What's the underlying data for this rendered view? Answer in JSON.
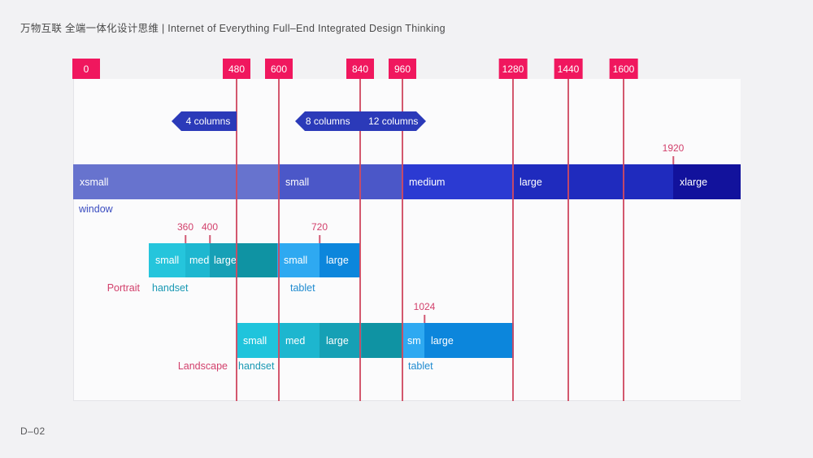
{
  "title": "万物互联 全端一体化设计思维 | Internet of Everything Full–End Integrated Design Thinking",
  "doc_code": "D–02",
  "colors": {
    "breakpoint_tag": "#F0175E",
    "breakpoint_line": "#CF4A62",
    "column_badge": "#2B3AB9",
    "window_xsmall": "#6773CE",
    "window_small": "#4B57C8",
    "window_medium": "#2B3AD2",
    "window_large": "#1F2BBE",
    "window_xlarge": "#12129C",
    "handset_small": "#25C5DC",
    "handset_med": "#1DB7D0",
    "handset_large": "#17A0B6",
    "handset_extension": "#0F93A3",
    "tablet_small": "#2EA9F1",
    "tablet_large": "#0C86DC",
    "pink_text": "#D23F6B",
    "teal_text": "#1898B3",
    "blue_text": "#1F8BD0"
  },
  "breakpoint_tags": [
    "0",
    "480",
    "600",
    "840",
    "960",
    "1280",
    "1440",
    "1600"
  ],
  "max_width_label": "1920",
  "column_badges": {
    "four": "4 columns",
    "eight": "8 columns",
    "twelve": "12 columns"
  },
  "window_bar": {
    "caption": "window",
    "segments": [
      "xsmall",
      "small",
      "medium",
      "large",
      "xlarge"
    ]
  },
  "portrait": {
    "row_label": "Portrait",
    "ticks": [
      "360",
      "400",
      "720"
    ],
    "handset": {
      "caption": "handset",
      "segments": [
        "small",
        "med",
        "large"
      ]
    },
    "tablet": {
      "caption": "tablet",
      "segments": [
        "small",
        "large"
      ]
    }
  },
  "landscape": {
    "row_label": "Landscape",
    "ticks": [
      "1024"
    ],
    "handset": {
      "caption": "handset",
      "segments": [
        "small",
        "med",
        "large"
      ]
    },
    "tablet": {
      "caption": "tablet",
      "segments": [
        "sm",
        "large"
      ]
    }
  }
}
